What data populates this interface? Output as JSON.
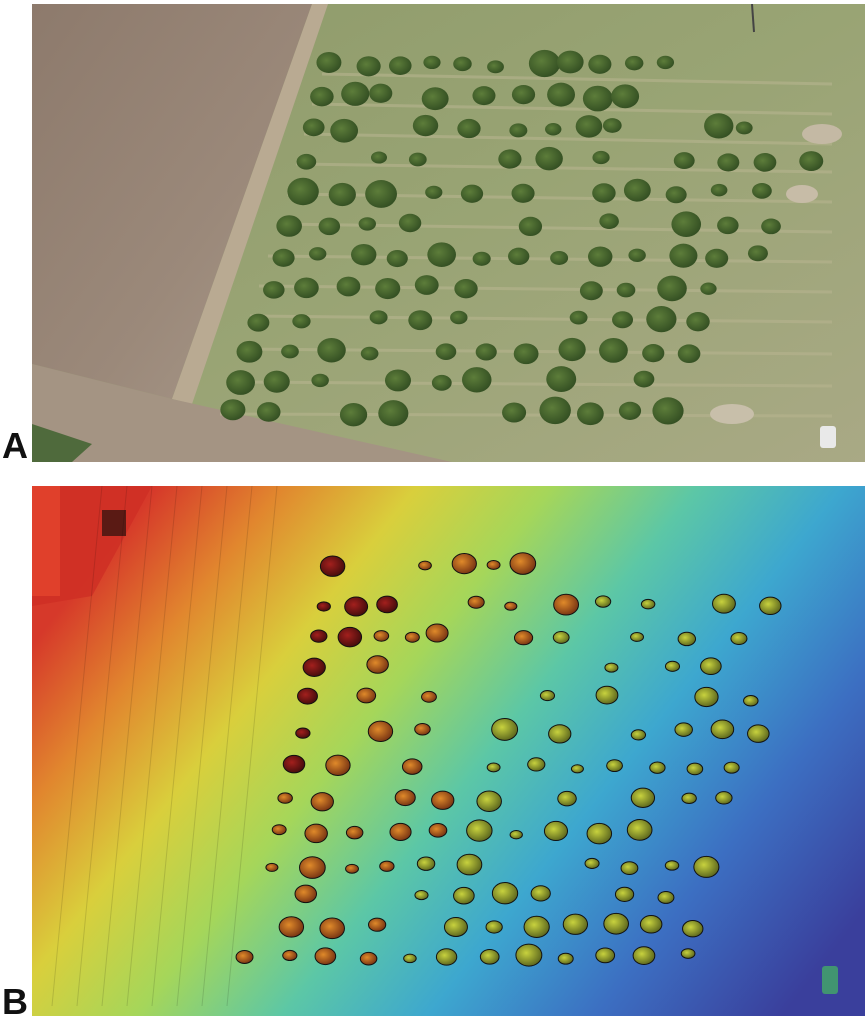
{
  "figure": {
    "panels": [
      {
        "label": "A"
      },
      {
        "label": "B"
      }
    ]
  }
}
